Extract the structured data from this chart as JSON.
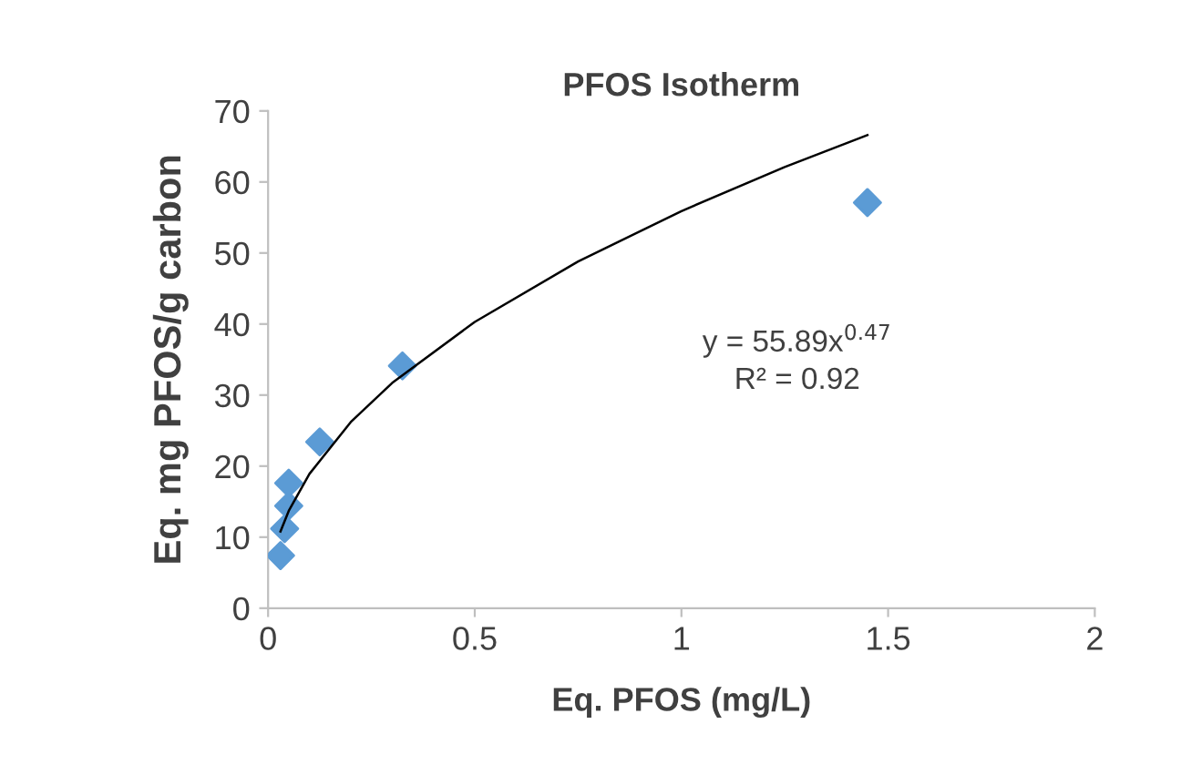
{
  "chart_data": {
    "type": "scatter",
    "title": "PFOS Isotherm",
    "xlabel": "Eq. PFOS (mg/L)",
    "ylabel": "Eq. mg PFOS/g carbon",
    "series": [
      {
        "color": "#5b9bd5",
        "marker": "diamond",
        "x": [
          0.03,
          0.04,
          0.05,
          0.05,
          0.125,
          0.325,
          1.45
        ],
        "values": [
          7.4,
          11.2,
          14.4,
          17.6,
          23.4,
          34.1,
          57.1
        ]
      },
      {
        "type": "line",
        "color": "#000000",
        "marker": "none",
        "line_style": "solid",
        "x": [
          0.03,
          0.05,
          0.1,
          0.2,
          0.3,
          0.5,
          0.75,
          1.0,
          1.25,
          1.45
        ],
        "values": [
          10.8,
          13.7,
          18.9,
          26.2,
          31.7,
          40.3,
          48.8,
          55.9,
          62.1,
          66.6
        ]
      }
    ],
    "annotations": [
      "y = 55.89x$^{0.47}$\nR² = 0.92"
    ],
    "xlim": [
      0,
      2
    ],
    "xticks": [
      0,
      0.5,
      1,
      1.5,
      2
    ],
    "ylim": [
      0,
      70
    ],
    "yticks": [
      0,
      10,
      20,
      30,
      40,
      50,
      60,
      70
    ],
    "grid": false,
    "legend": false
  }
}
